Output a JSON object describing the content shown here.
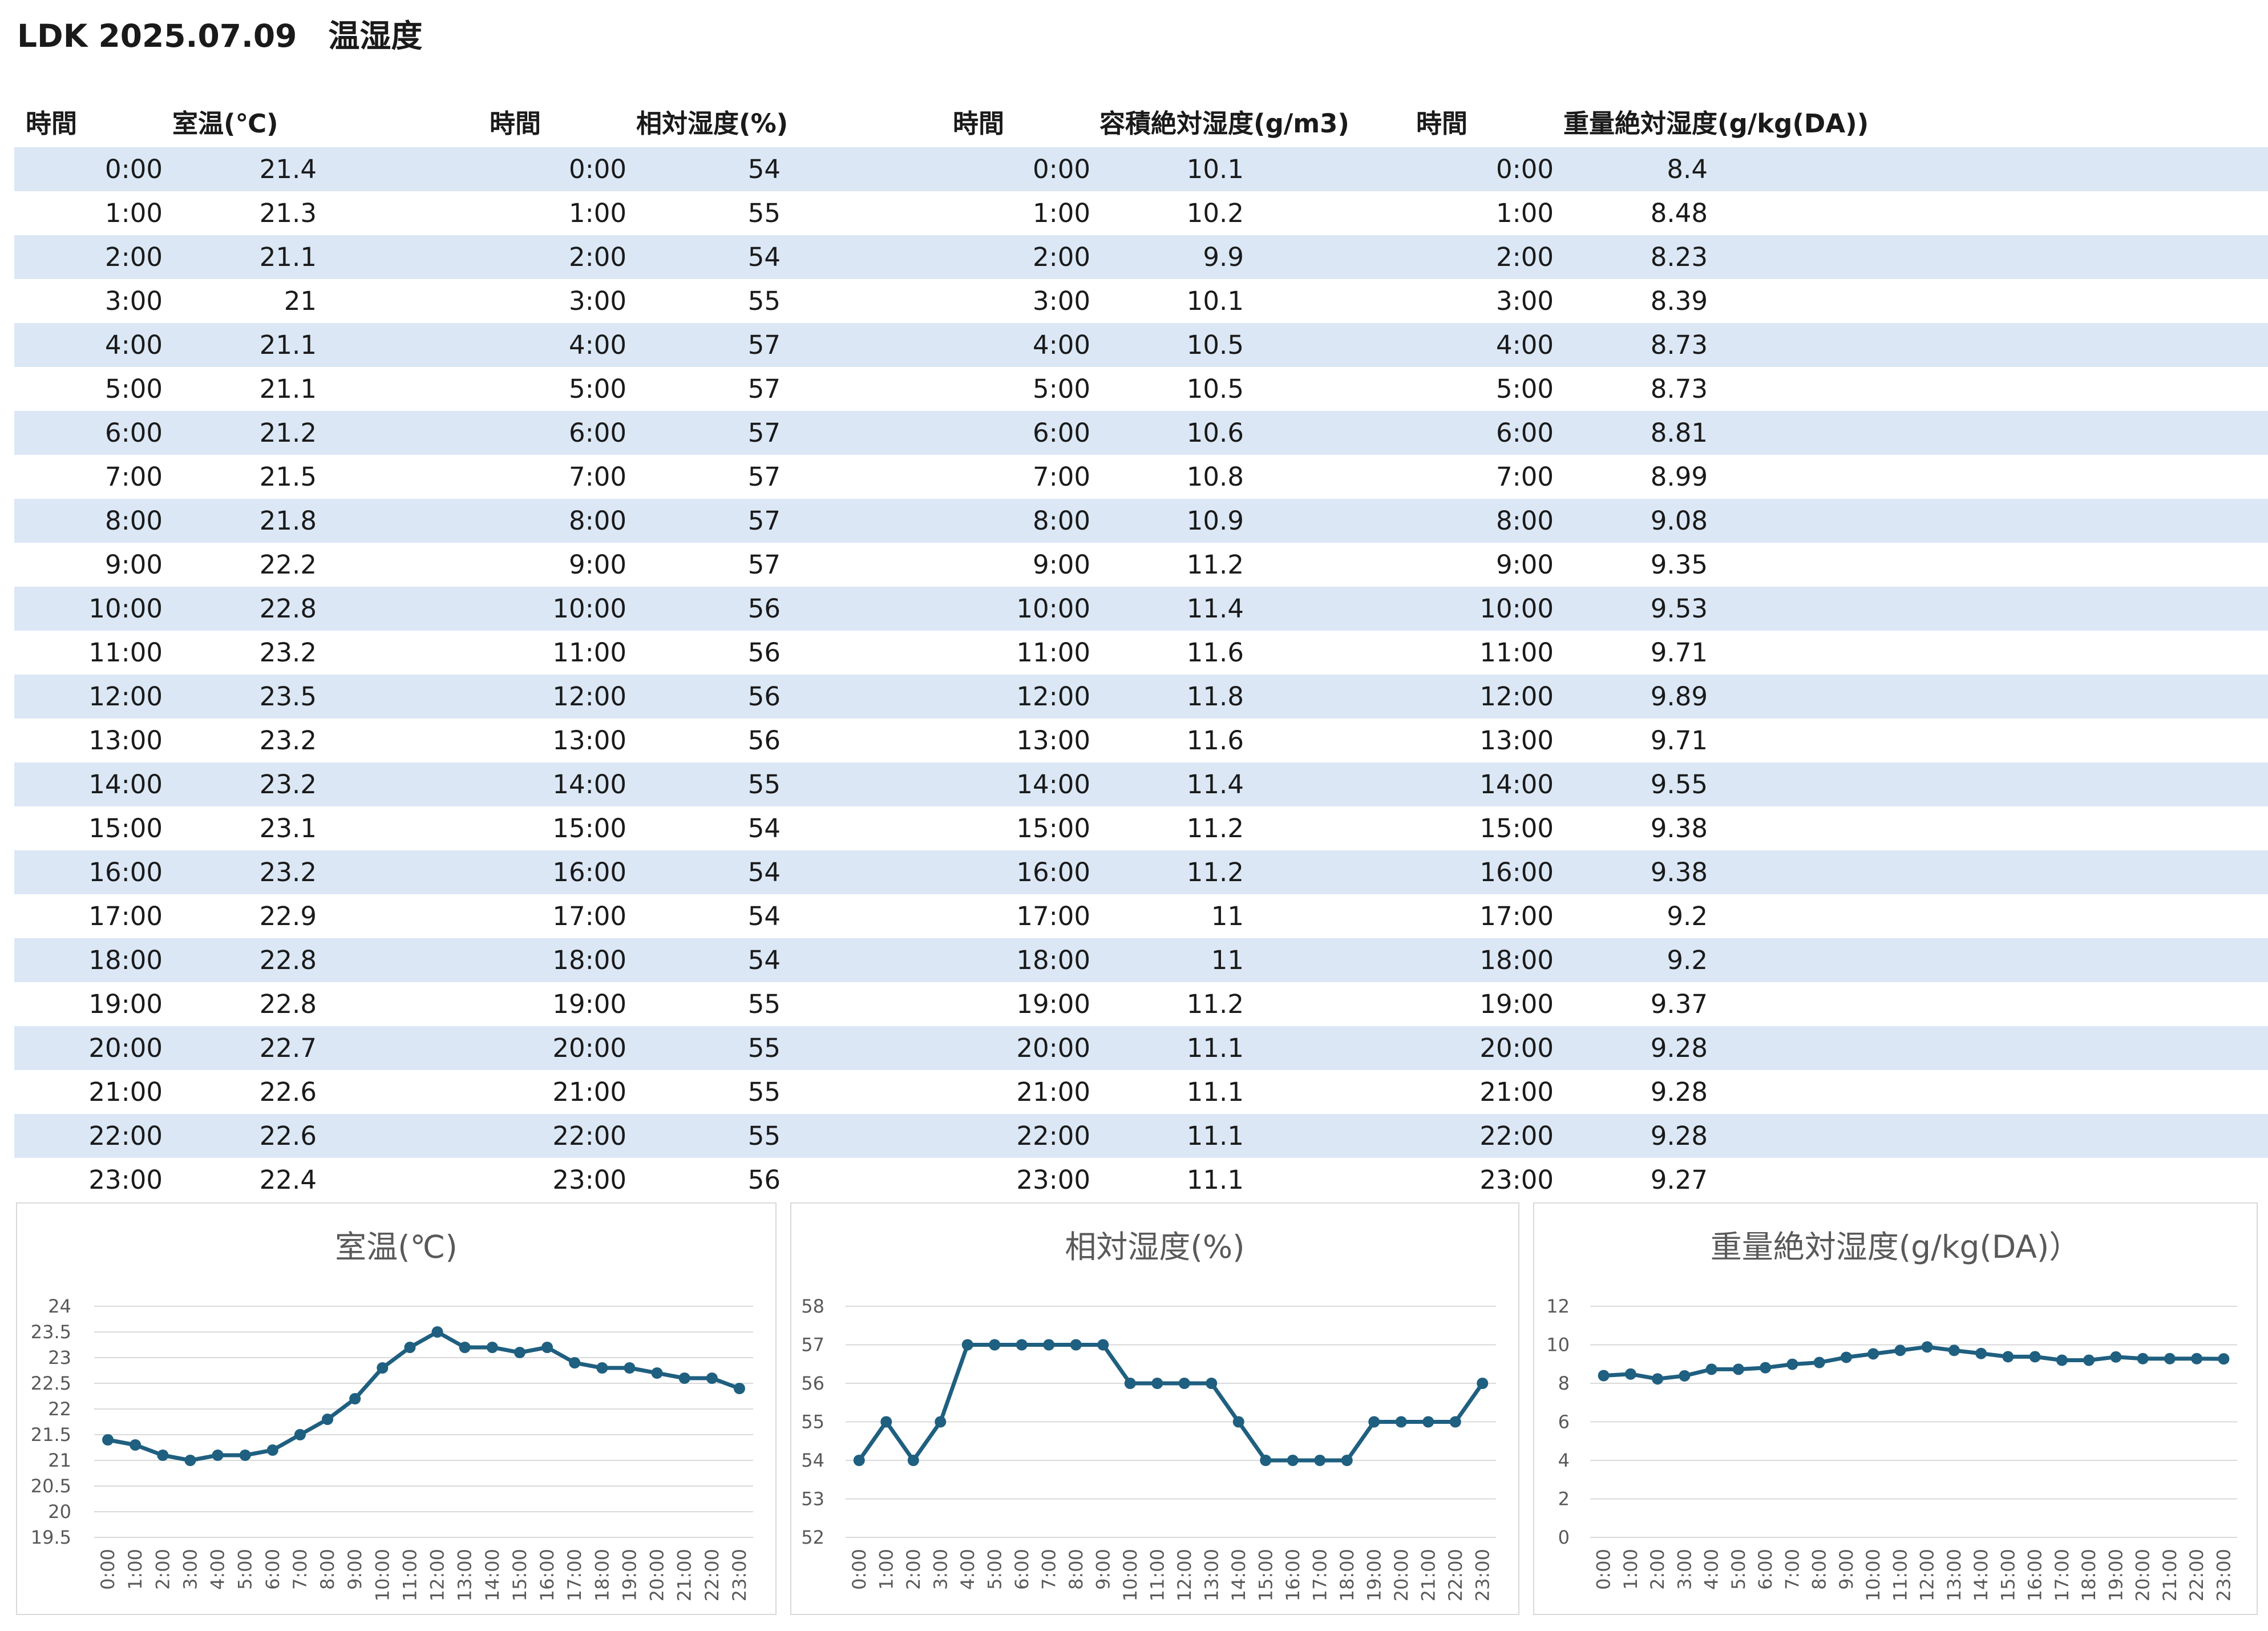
{
  "title": "LDK 2025.07.09　温湿度",
  "table": {
    "headers": [
      {
        "time": "時間",
        "value": "室温(℃)"
      },
      {
        "time": "時間",
        "value": "相対湿度(%)"
      },
      {
        "time": "時間",
        "value": "容積絶対湿度(g/m3)"
      },
      {
        "time": "時間",
        "value": "重量絶対湿度(g/kg(DA))"
      }
    ],
    "times": [
      "0:00",
      "1:00",
      "2:00",
      "3:00",
      "4:00",
      "5:00",
      "6:00",
      "7:00",
      "8:00",
      "9:00",
      "10:00",
      "11:00",
      "12:00",
      "13:00",
      "14:00",
      "15:00",
      "16:00",
      "17:00",
      "18:00",
      "19:00",
      "20:00",
      "21:00",
      "22:00",
      "23:00"
    ],
    "columns": [
      [
        "21.4",
        "21.3",
        "21.1",
        "21",
        "21.1",
        "21.1",
        "21.2",
        "21.5",
        "21.8",
        "22.2",
        "22.8",
        "23.2",
        "23.5",
        "23.2",
        "23.2",
        "23.1",
        "23.2",
        "22.9",
        "22.8",
        "22.8",
        "22.7",
        "22.6",
        "22.6",
        "22.4"
      ],
      [
        "54",
        "55",
        "54",
        "55",
        "57",
        "57",
        "57",
        "57",
        "57",
        "57",
        "56",
        "56",
        "56",
        "56",
        "55",
        "54",
        "54",
        "54",
        "54",
        "55",
        "55",
        "55",
        "55",
        "56"
      ],
      [
        "10.1",
        "10.2",
        "9.9",
        "10.1",
        "10.5",
        "10.5",
        "10.6",
        "10.8",
        "10.9",
        "11.2",
        "11.4",
        "11.6",
        "11.8",
        "11.6",
        "11.4",
        "11.2",
        "11.2",
        "11",
        "11",
        "11.2",
        "11.1",
        "11.1",
        "11.1",
        "11.1"
      ],
      [
        "8.4",
        "8.48",
        "8.23",
        "8.39",
        "8.73",
        "8.73",
        "8.81",
        "8.99",
        "9.08",
        "9.35",
        "9.53",
        "9.71",
        "9.89",
        "9.71",
        "9.55",
        "9.38",
        "9.38",
        "9.2",
        "9.2",
        "9.37",
        "9.28",
        "9.28",
        "9.28",
        "9.27"
      ]
    ]
  },
  "colors": {
    "band": "#dbe7f5",
    "series": "#1f5f80",
    "grid": "#d9d9d9",
    "axis_text": "#595959"
  },
  "chart_data": [
    {
      "type": "line",
      "title": "室温(℃)",
      "categories": [
        "0:00",
        "1:00",
        "2:00",
        "3:00",
        "4:00",
        "5:00",
        "6:00",
        "7:00",
        "8:00",
        "9:00",
        "10:00",
        "11:00",
        "12:00",
        "13:00",
        "14:00",
        "15:00",
        "16:00",
        "17:00",
        "18:00",
        "19:00",
        "20:00",
        "21:00",
        "22:00",
        "23:00"
      ],
      "values": [
        21.4,
        21.3,
        21.1,
        21,
        21.1,
        21.1,
        21.2,
        21.5,
        21.8,
        22.2,
        22.8,
        23.2,
        23.5,
        23.2,
        23.2,
        23.1,
        23.2,
        22.9,
        22.8,
        22.8,
        22.7,
        22.6,
        22.6,
        22.4
      ],
      "ylim": [
        19.5,
        24
      ],
      "yticks": [
        "19.5",
        "20",
        "20.5",
        "21",
        "21.5",
        "22",
        "22.5",
        "23",
        "23.5",
        "24"
      ],
      "grid": true,
      "markers": true
    },
    {
      "type": "line",
      "title": "相対湿度(%)",
      "categories": [
        "0:00",
        "1:00",
        "2:00",
        "3:00",
        "4:00",
        "5:00",
        "6:00",
        "7:00",
        "8:00",
        "9:00",
        "10:00",
        "11:00",
        "12:00",
        "13:00",
        "14:00",
        "15:00",
        "16:00",
        "17:00",
        "18:00",
        "19:00",
        "20:00",
        "21:00",
        "22:00",
        "23:00"
      ],
      "values": [
        54,
        55,
        54,
        55,
        57,
        57,
        57,
        57,
        57,
        57,
        56,
        56,
        56,
        56,
        55,
        54,
        54,
        54,
        54,
        55,
        55,
        55,
        55,
        56
      ],
      "ylim": [
        52,
        58
      ],
      "yticks": [
        "52",
        "53",
        "54",
        "55",
        "56",
        "57",
        "58"
      ],
      "grid": true,
      "markers": true
    },
    {
      "type": "line",
      "title": "重量絶対湿度(g/kg(DA)）",
      "categories": [
        "0:00",
        "1:00",
        "2:00",
        "3:00",
        "4:00",
        "5:00",
        "6:00",
        "7:00",
        "8:00",
        "9:00",
        "10:00",
        "11:00",
        "12:00",
        "13:00",
        "14:00",
        "15:00",
        "16:00",
        "17:00",
        "18:00",
        "19:00",
        "20:00",
        "21:00",
        "22:00",
        "23:00"
      ],
      "values": [
        8.4,
        8.48,
        8.23,
        8.39,
        8.73,
        8.73,
        8.81,
        8.99,
        9.08,
        9.35,
        9.53,
        9.71,
        9.89,
        9.71,
        9.55,
        9.38,
        9.38,
        9.2,
        9.2,
        9.37,
        9.28,
        9.28,
        9.28,
        9.27
      ],
      "ylim": [
        0,
        12
      ],
      "yticks": [
        "0",
        "2",
        "4",
        "6",
        "8",
        "10",
        "12"
      ],
      "grid": true,
      "markers": true
    }
  ]
}
